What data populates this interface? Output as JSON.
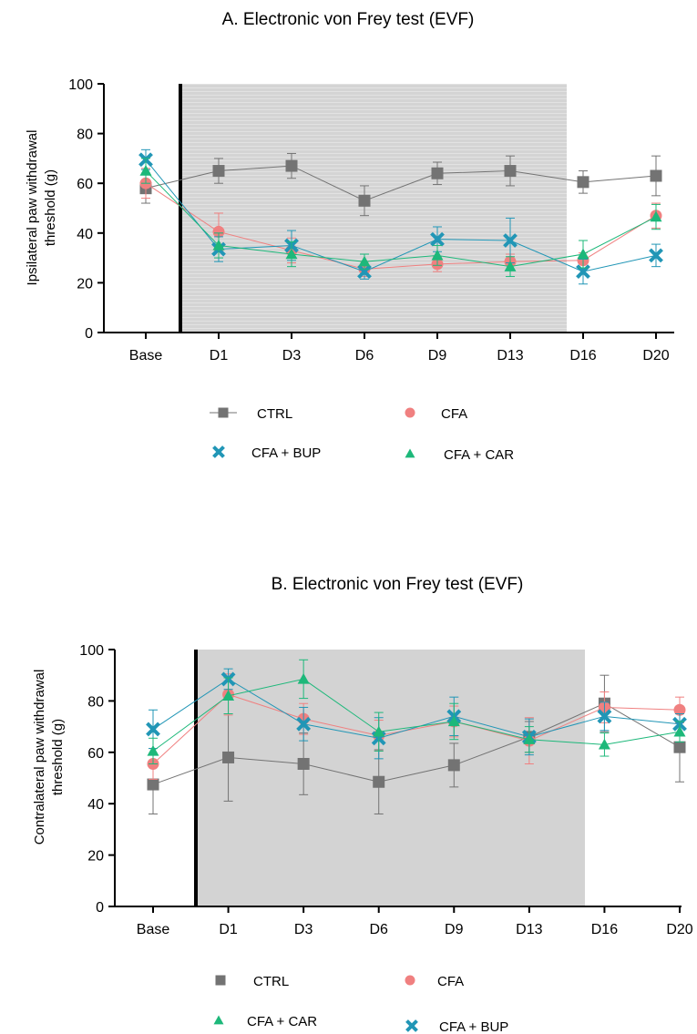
{
  "chart_data": [
    {
      "type": "line",
      "title": "A. Electronic von Frey test (EVF)",
      "xlabel": "",
      "ylabel": "Ipsilateral paw withdrawal threshold (g)",
      "ylabel_lines": [
        "Ipsilateral paw withdrawal",
        "threshold (g)"
      ],
      "ylim": [
        0,
        100
      ],
      "yticks": [
        0,
        20,
        40,
        60,
        80,
        100
      ],
      "categories": [
        "Base",
        "D1",
        "D3",
        "D6",
        "D9",
        "D13",
        "D16",
        "D20"
      ],
      "shaded_region": {
        "from": "D1",
        "to": "D13",
        "color": "#d4d4d4",
        "striped": true
      },
      "divider_after": "Base",
      "legend_placement": "bottom",
      "series": [
        {
          "name": "CTRL",
          "color": "#737373",
          "marker": "square",
          "values": [
            58,
            65,
            67,
            53,
            64,
            65,
            60.5,
            63
          ],
          "errors": [
            6,
            5,
            5,
            6,
            4.5,
            6,
            4.5,
            8
          ]
        },
        {
          "name": "CFA",
          "color": "#f08080",
          "marker": "circle",
          "values": [
            60,
            40.5,
            33,
            25.5,
            27.5,
            28.5,
            29,
            47
          ],
          "errors": [
            6,
            7.5,
            5,
            3,
            3,
            3,
            3,
            5
          ]
        },
        {
          "name": "CFA + BUP",
          "color": "#2196b6",
          "marker": "x",
          "values": [
            69.5,
            33.5,
            35,
            24.5,
            37.5,
            37,
            24.5,
            31
          ],
          "errors": [
            4,
            5,
            6,
            3,
            5,
            9,
            5,
            4.5
          ]
        },
        {
          "name": "CFA + CAR",
          "color": "#1db87a",
          "marker": "triangle",
          "values": [
            65,
            35,
            31.5,
            28.5,
            31,
            26.5,
            31.5,
            46.5
          ],
          "errors": [
            5,
            5,
            5,
            3,
            4,
            4,
            5.5,
            5
          ]
        }
      ]
    },
    {
      "type": "line",
      "title": "B. Electronic von Frey test (EVF)",
      "xlabel": "",
      "ylabel": "Contralateral paw withdrawal threshold (g)",
      "ylabel_lines": [
        "Contralateral paw withdrawal",
        "threshold (g)"
      ],
      "ylim": [
        0,
        100
      ],
      "yticks": [
        0,
        20,
        40,
        60,
        80,
        100
      ],
      "categories": [
        "Base",
        "D1",
        "D3",
        "D6",
        "D9",
        "D13",
        "D16",
        "D20"
      ],
      "shaded_region": {
        "from": "D1",
        "to": "D13",
        "color": "#d3d3d3",
        "striped": false
      },
      "divider_after": "Base",
      "legend_placement": "bottom",
      "series": [
        {
          "name": "CTRL",
          "color": "#737373",
          "marker": "square",
          "values": [
            47.5,
            58,
            55.5,
            48.5,
            55,
            66,
            79,
            62
          ],
          "errors": [
            11.5,
            17,
            12,
            12.5,
            8.5,
            6,
            11,
            13.5
          ]
        },
        {
          "name": "CFA",
          "color": "#f08080",
          "marker": "circle",
          "values": [
            55.5,
            82.5,
            73,
            66.5,
            72,
            64.5,
            77.5,
            76.5
          ],
          "errors": [
            6,
            8,
            6,
            6,
            6,
            9,
            6,
            5
          ]
        },
        {
          "name": "CFA + BUP",
          "color": "#2196b6",
          "marker": "x",
          "values": [
            69,
            88.5,
            71,
            65.5,
            74,
            66,
            74,
            71
          ],
          "errors": [
            7.5,
            4,
            6.5,
            8,
            7.5,
            7,
            5.5,
            4
          ]
        },
        {
          "name": "CFA + CAR",
          "color": "#1db87a",
          "marker": "triangle",
          "values": [
            60.5,
            82,
            88.5,
            68,
            72,
            65,
            63,
            68
          ],
          "errors": [
            5,
            7,
            7.5,
            7.5,
            7,
            5,
            4.5,
            4
          ]
        }
      ]
    }
  ],
  "legends": [
    [
      {
        "label": "CTRL",
        "series": "CTRL",
        "line": true
      },
      {
        "label": "CFA",
        "series": "CFA",
        "line": false
      },
      {
        "label": "CFA + BUP",
        "series": "CFA + BUP",
        "line": false
      },
      {
        "label": "CFA + CAR",
        "series": "CFA + CAR",
        "line": false
      }
    ],
    [
      {
        "label": "CTRL",
        "series": "CTRL",
        "line": false
      },
      {
        "label": "CFA",
        "series": "CFA",
        "line": false
      },
      {
        "label": "CFA + CAR",
        "series": "CFA + CAR",
        "line": false
      },
      {
        "label": "CFA + BUP",
        "series": "CFA + BUP",
        "line": false
      }
    ]
  ]
}
